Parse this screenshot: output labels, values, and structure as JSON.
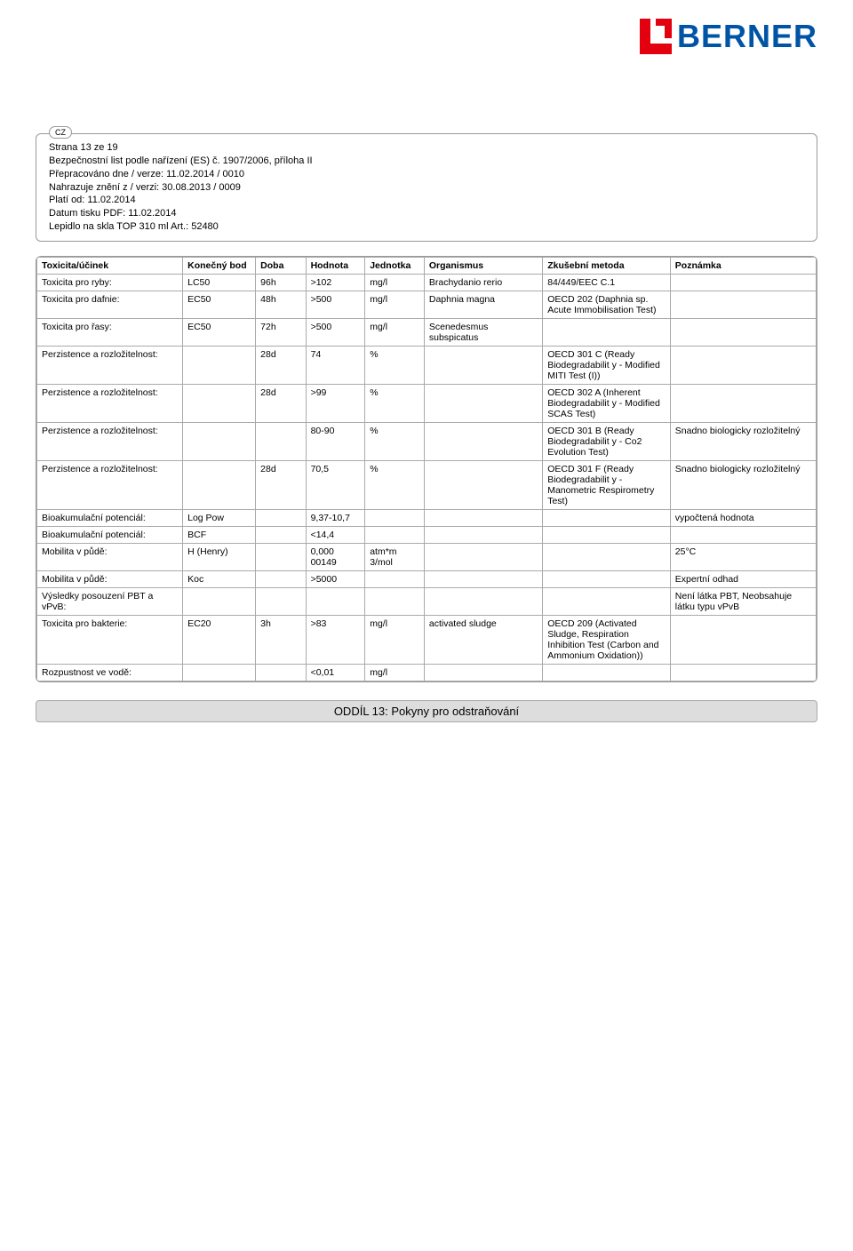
{
  "logo": {
    "text": "BERNER",
    "icon_fill": "#e3000f",
    "text_color": "#0054a6"
  },
  "cz": "CZ",
  "header": {
    "l1": "Strana 13 ze 19",
    "l2": "Bezpečnostní list podle nařízení (ES) č. 1907/2006, příloha II",
    "l3": "Přepracováno dne / verze: 11.02.2014  / 0010",
    "l4": "Nahrazuje znění z / verzi: 30.08.2013  / 0009",
    "l5": "Platí od: 11.02.2014",
    "l6": "Datum tisku PDF: 11.02.2014",
    "l7": "Lepidlo na skla TOP 310 ml Art.: 52480"
  },
  "table": {
    "headers": [
      "Toxicita/účinek",
      "Konečný bod",
      "Doba",
      "Hodnota",
      "Jednotka",
      "Organismus",
      "Zkušební metoda",
      "Poznámka"
    ],
    "rows": [
      [
        "Toxicita pro ryby:",
        "LC50",
        "96h",
        ">102",
        "mg/l",
        "Brachydanio rerio",
        "84/449/EEC C.1",
        ""
      ],
      [
        "Toxicita pro dafnie:",
        "EC50",
        "48h",
        ">500",
        "mg/l",
        "Daphnia magna",
        "OECD 202 (Daphnia sp. Acute Immobilisation Test)",
        ""
      ],
      [
        "Toxicita pro řasy:",
        "EC50",
        "72h",
        ">500",
        "mg/l",
        "Scenedesmus subspicatus",
        "",
        ""
      ],
      [
        "Perzistence a rozložitelnost:",
        "",
        "28d",
        "74",
        "%",
        "",
        "OECD 301 C (Ready Biodegradabilit y - Modified MITI Test (I))",
        ""
      ],
      [
        "Perzistence a rozložitelnost:",
        "",
        "28d",
        ">99",
        "%",
        "",
        "OECD 302 A (Inherent Biodegradabilit y - Modified SCAS Test)",
        ""
      ],
      [
        "Perzistence a rozložitelnost:",
        "",
        "",
        "80-90",
        "%",
        "",
        "OECD 301 B (Ready Biodegradabilit y - Co2 Evolution Test)",
        "Snadno biologicky rozložitelný"
      ],
      [
        "Perzistence a rozložitelnost:",
        "",
        "28d",
        "70,5",
        "%",
        "",
        "OECD 301 F (Ready Biodegradabilit y - Manometric Respirometry Test)",
        "Snadno biologicky rozložitelný"
      ],
      [
        "Bioakumulační potenciál:",
        "Log Pow",
        "",
        "9,37-10,7",
        "",
        "",
        "",
        "vypočtená hodnota"
      ],
      [
        "Bioakumulační potenciál:",
        "BCF",
        "",
        "<14,4",
        "",
        "",
        "",
        ""
      ],
      [
        "Mobilita v půdě:",
        "H (Henry)",
        "",
        "0,000 00149",
        "atm*m 3/mol",
        "",
        "",
        "25°C"
      ],
      [
        "Mobilita v půdě:",
        "Koc",
        "",
        ">5000",
        "",
        "",
        "",
        "Expertní odhad"
      ],
      [
        "Výsledky posouzení PBT a vPvB:",
        "",
        "",
        "",
        "",
        "",
        "",
        "Není látka PBT, Neobsahuje látku typu vPvB"
      ],
      [
        "Toxicita pro bakterie:",
        "EC20",
        "3h",
        ">83",
        "mg/l",
        "activated sludge",
        "OECD 209 (Activated Sludge, Respiration Inhibition Test (Carbon and Ammonium Oxidation))",
        ""
      ],
      [
        "Rozpustnost ve vodě:",
        "",
        "",
        "<0,01",
        "mg/l",
        "",
        "",
        ""
      ]
    ]
  },
  "section13": "ODDÍL 13: Pokyny pro odstraňování"
}
